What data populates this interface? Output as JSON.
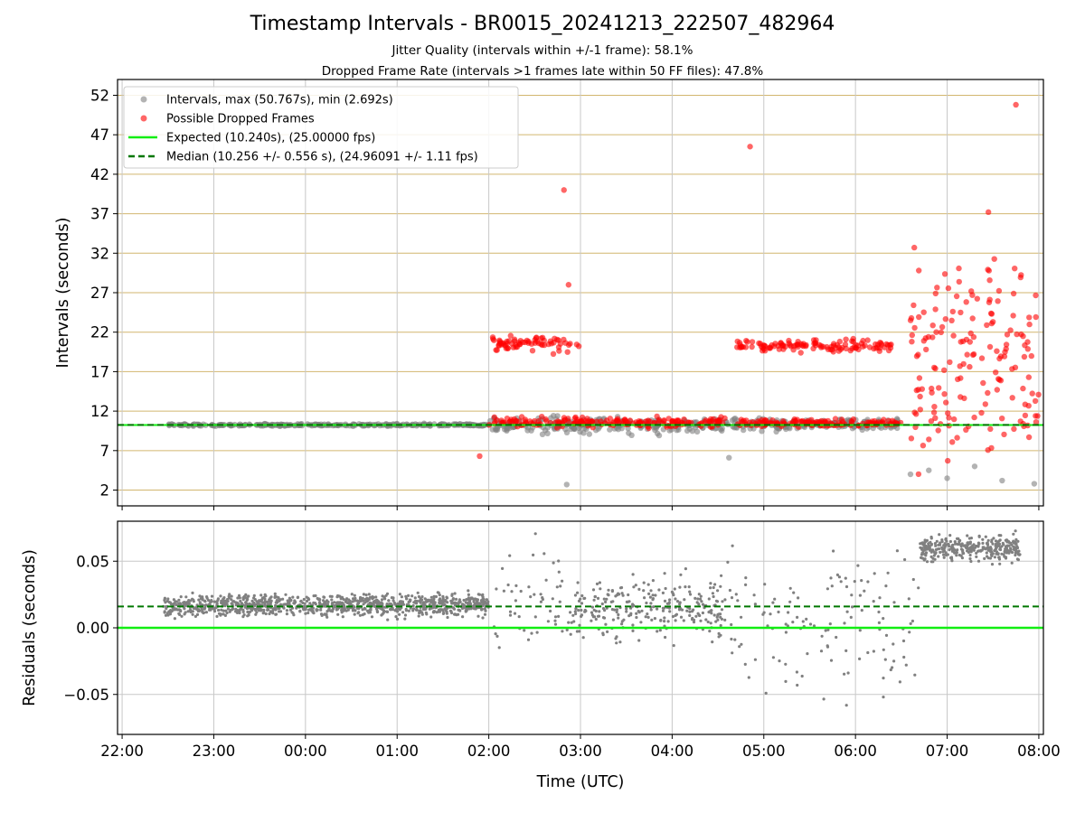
{
  "title": "Timestamp Intervals - BR0015_20241213_222507_482964",
  "subtitle1": "Jitter Quality (intervals within +/-1 frame): 58.1%",
  "subtitle2": "Dropped Frame Rate (intervals >1 frames late within 50 FF files): 47.8%",
  "colors": {
    "intervals": "#808080",
    "dropped": "#ff0000",
    "expected": "#11ee11",
    "median": "#007700",
    "hgrid": "#d2b66f"
  },
  "chart_data": [
    {
      "type": "scatter",
      "ylabel": "Intervals (seconds)",
      "ylim": [
        0,
        54
      ],
      "yticks": [
        2,
        7,
        12,
        17,
        22,
        27,
        32,
        37,
        42,
        47,
        52
      ],
      "ytick_labels": [
        "2",
        "7",
        "12",
        "17",
        "22",
        "27",
        "32",
        "37",
        "42",
        "47",
        "52"
      ],
      "grid": true,
      "legend_placement": "upper-left",
      "legend": [
        {
          "label": "Intervals, max (50.767s), min (2.692s)",
          "kind": "marker",
          "color": "#808080"
        },
        {
          "label": "Possible Dropped Frames",
          "kind": "marker",
          "color": "#ff0000"
        },
        {
          "label": "Expected (10.240s), (25.00000 fps)",
          "kind": "line",
          "color": "#11ee11"
        },
        {
          "label": "Median (10.256 +/- 0.556 s), (24.96091 +/- 1.11 fps)",
          "kind": "dashed",
          "color": "#007700"
        }
      ],
      "expected": 10.24,
      "median": 10.256,
      "max": 50.767,
      "min": 2.692,
      "regular_interval_segments": [
        {
          "x_start": 0.5,
          "x_end": 4.0,
          "center": 10.25,
          "spread": 0.1
        },
        {
          "x_start": 4.0,
          "x_end": 6.6,
          "center": 10.2,
          "spread": 0.7
        },
        {
          "x_start": 6.6,
          "x_end": 8.5,
          "center": 10.3,
          "spread": 0.5
        }
      ],
      "dropped_frame_clusters": [
        {
          "x_start": 4.0,
          "x_end": 6.6,
          "center": 10.6,
          "spread": 0.4
        },
        {
          "x_start": 6.7,
          "x_end": 8.5,
          "center": 10.5,
          "spread": 0.3
        },
        {
          "x_start": 4.0,
          "x_end": 5.0,
          "center": 20.5,
          "spread": 0.6
        },
        {
          "x_start": 6.7,
          "x_end": 8.4,
          "center": 20.3,
          "spread": 0.5
        },
        {
          "x_start": 8.6,
          "x_end": 10.0,
          "center": 13.5,
          "spread": 6
        },
        {
          "x_start": 8.6,
          "x_end": 10.0,
          "center": 23,
          "spread": 6
        }
      ],
      "outliers": [
        {
          "x": 4.82,
          "y": 40.0
        },
        {
          "x": 4.87,
          "y": 28.0
        },
        {
          "x": 6.85,
          "y": 45.5
        },
        {
          "x": 9.45,
          "y": 37.2
        },
        {
          "x": 9.75,
          "y": 50.8
        },
        {
          "x": 3.9,
          "y": 6.3
        }
      ],
      "low_points": [
        {
          "x": 4.85,
          "y": 2.7
        },
        {
          "x": 6.62,
          "y": 6.1
        },
        {
          "x": 8.6,
          "y": 4.0
        },
        {
          "x": 8.8,
          "y": 4.5
        },
        {
          "x": 9.0,
          "y": 3.5
        },
        {
          "x": 9.3,
          "y": 5.0
        },
        {
          "x": 9.6,
          "y": 3.2
        },
        {
          "x": 9.95,
          "y": 2.8
        }
      ]
    },
    {
      "type": "scatter",
      "xlabel": "Time (UTC)",
      "ylabel": "Residuals (seconds)",
      "ylim": [
        -0.08,
        0.08
      ],
      "xlim": [
        -0.05,
        10.05
      ],
      "yticks": [
        -0.05,
        0.0,
        0.05
      ],
      "ytick_labels": [
        "−0.05",
        "0.00",
        "0.05"
      ],
      "xticks": [
        0,
        1,
        2,
        3,
        4,
        5,
        6,
        7,
        8,
        9,
        10
      ],
      "xtick_labels": [
        "22:00",
        "23:00",
        "00:00",
        "01:00",
        "02:00",
        "03:00",
        "04:00",
        "05:00",
        "06:00",
        "07:00",
        "08:00"
      ],
      "grid": true,
      "expected_residual": 0.0,
      "median_residual": 0.016,
      "residual_segments": [
        {
          "x_start": 0.45,
          "x_end": 4.0,
          "center": 0.017,
          "spread": 0.012
        },
        {
          "x_start": 4.0,
          "x_end": 4.9,
          "center": 0.02,
          "spread": 0.07
        },
        {
          "x_start": 4.9,
          "x_end": 6.6,
          "center": 0.015,
          "spread": 0.035
        },
        {
          "x_start": 6.6,
          "x_end": 8.7,
          "center": 0.0,
          "spread": 0.08
        },
        {
          "x_start": 8.7,
          "x_end": 9.8,
          "center": 0.06,
          "spread": 0.015
        }
      ]
    }
  ]
}
